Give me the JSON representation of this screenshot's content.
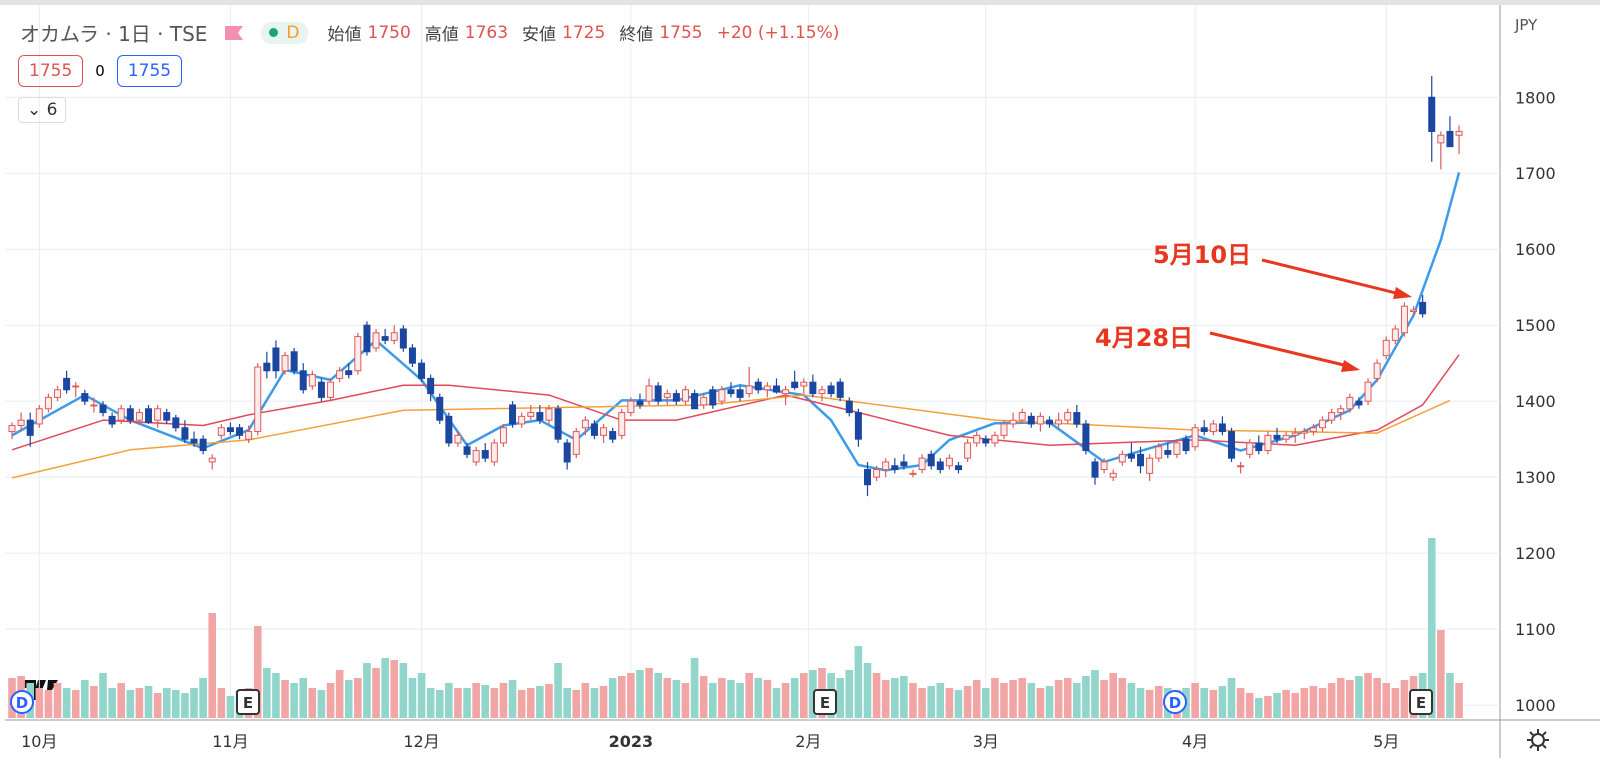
{
  "header": {
    "name": "オカムラ · 1日 · TSE",
    "badge": "D",
    "open_label": "始値",
    "open": 1750,
    "high_label": "高値",
    "high": 1763,
    "low_label": "安値",
    "low": 1725,
    "close_label": "終値",
    "close": 1755,
    "change": "+20 (+1.15%)",
    "price_left": 1755,
    "spread": 0,
    "price_right": 1755,
    "indicators": 6
  },
  "chart_data": {
    "type": "candlestick",
    "currency": "JPY",
    "ylim": [
      983,
      1928
    ],
    "yticks": [
      1000,
      1100,
      1200,
      1300,
      1400,
      1500,
      1600,
      1700,
      1800
    ],
    "xlim": [
      -0.77,
      163.5
    ],
    "xticks": [
      {
        "value": 3,
        "label": "10月"
      },
      {
        "value": 24,
        "label": "11月"
      },
      {
        "value": 45,
        "label": "12月"
      },
      {
        "value": 68,
        "label": "2023"
      },
      {
        "value": 87.5,
        "label": "2月"
      },
      {
        "value": 107,
        "label": "3月"
      },
      {
        "value": 130,
        "label": "4月"
      },
      {
        "value": 151,
        "label": "5月"
      }
    ],
    "up_color": "#e05a5a",
    "down_color": "#1b47a0",
    "up_volume_color": "#f2a5a5",
    "down_volume_color": "#92d5cb",
    "grid": true,
    "volume_lim": [
      0,
      220
    ],
    "candles": [
      [
        1360,
        1372,
        1350,
        1368
      ],
      [
        1368,
        1385,
        1360,
        1375
      ],
      [
        1375,
        1385,
        1340,
        1355
      ],
      [
        1370,
        1395,
        1365,
        1390
      ],
      [
        1390,
        1410,
        1385,
        1405
      ],
      [
        1405,
        1420,
        1400,
        1415
      ],
      [
        1430,
        1440,
        1410,
        1415
      ],
      [
        1420,
        1425,
        1405,
        1420
      ],
      [
        1410,
        1415,
        1395,
        1400
      ],
      [
        1395,
        1405,
        1385,
        1395
      ],
      [
        1395,
        1400,
        1380,
        1385
      ],
      [
        1380,
        1385,
        1365,
        1370
      ],
      [
        1375,
        1395,
        1370,
        1390
      ],
      [
        1390,
        1395,
        1370,
        1375
      ],
      [
        1375,
        1390,
        1370,
        1385
      ],
      [
        1390,
        1395,
        1370,
        1372
      ],
      [
        1375,
        1395,
        1365,
        1390
      ],
      [
        1385,
        1390,
        1370,
        1375
      ],
      [
        1378,
        1382,
        1360,
        1365
      ],
      [
        1365,
        1375,
        1345,
        1350
      ],
      [
        1350,
        1360,
        1340,
        1345
      ],
      [
        1350,
        1355,
        1330,
        1335
      ],
      [
        1320,
        1330,
        1310,
        1325
      ],
      [
        1355,
        1370,
        1350,
        1365
      ],
      [
        1365,
        1372,
        1355,
        1360
      ],
      [
        1365,
        1370,
        1350,
        1355
      ],
      [
        1350,
        1368,
        1345,
        1360
      ],
      [
        1360,
        1450,
        1355,
        1445
      ],
      [
        1450,
        1465,
        1430,
        1440
      ],
      [
        1470,
        1480,
        1430,
        1440
      ],
      [
        1440,
        1465,
        1435,
        1460
      ],
      [
        1465,
        1470,
        1435,
        1440
      ],
      [
        1440,
        1450,
        1410,
        1415
      ],
      [
        1420,
        1440,
        1415,
        1435
      ],
      [
        1425,
        1430,
        1400,
        1405
      ],
      [
        1405,
        1430,
        1400,
        1425
      ],
      [
        1430,
        1445,
        1425,
        1440
      ],
      [
        1440,
        1450,
        1430,
        1435
      ],
      [
        1440,
        1490,
        1435,
        1485
      ],
      [
        1500,
        1505,
        1460,
        1465
      ],
      [
        1470,
        1495,
        1465,
        1490
      ],
      [
        1485,
        1495,
        1475,
        1480
      ],
      [
        1480,
        1500,
        1475,
        1490
      ],
      [
        1495,
        1500,
        1465,
        1470
      ],
      [
        1470,
        1475,
        1445,
        1450
      ],
      [
        1450,
        1455,
        1425,
        1430
      ],
      [
        1430,
        1435,
        1400,
        1410
      ],
      [
        1405,
        1410,
        1370,
        1375
      ],
      [
        1380,
        1385,
        1340,
        1345
      ],
      [
        1345,
        1360,
        1340,
        1355
      ],
      [
        1340,
        1345,
        1325,
        1330
      ],
      [
        1320,
        1340,
        1315,
        1335
      ],
      [
        1335,
        1345,
        1320,
        1325
      ],
      [
        1320,
        1350,
        1315,
        1345
      ],
      [
        1345,
        1370,
        1340,
        1365
      ],
      [
        1395,
        1400,
        1365,
        1370
      ],
      [
        1370,
        1385,
        1365,
        1380
      ],
      [
        1380,
        1395,
        1375,
        1385
      ],
      [
        1385,
        1395,
        1370,
        1375
      ],
      [
        1375,
        1395,
        1370,
        1390
      ],
      [
        1390,
        1395,
        1345,
        1350
      ],
      [
        1345,
        1350,
        1310,
        1320
      ],
      [
        1330,
        1365,
        1325,
        1360
      ],
      [
        1365,
        1380,
        1355,
        1375
      ],
      [
        1370,
        1375,
        1350,
        1355
      ],
      [
        1355,
        1370,
        1345,
        1365
      ],
      [
        1360,
        1365,
        1345,
        1350
      ],
      [
        1355,
        1390,
        1350,
        1385
      ],
      [
        1385,
        1405,
        1380,
        1400
      ],
      [
        1400,
        1410,
        1390,
        1395
      ],
      [
        1400,
        1430,
        1395,
        1420
      ],
      [
        1420,
        1425,
        1395,
        1400
      ],
      [
        1405,
        1415,
        1395,
        1410
      ],
      [
        1410,
        1415,
        1395,
        1400
      ],
      [
        1400,
        1420,
        1395,
        1415
      ],
      [
        1410,
        1415,
        1390,
        1390
      ],
      [
        1395,
        1410,
        1390,
        1405
      ],
      [
        1415,
        1420,
        1390,
        1395
      ],
      [
        1400,
        1420,
        1395,
        1415
      ],
      [
        1415,
        1425,
        1405,
        1410
      ],
      [
        1415,
        1420,
        1400,
        1405
      ],
      [
        1410,
        1445,
        1405,
        1420
      ],
      [
        1425,
        1430,
        1410,
        1415
      ],
      [
        1415,
        1425,
        1405,
        1420
      ],
      [
        1420,
        1430,
        1410,
        1412
      ],
      [
        1410,
        1420,
        1395,
        1415
      ],
      [
        1425,
        1440,
        1415,
        1418
      ],
      [
        1420,
        1430,
        1410,
        1425
      ],
      [
        1425,
        1435,
        1405,
        1410
      ],
      [
        1410,
        1420,
        1400,
        1415
      ],
      [
        1420,
        1425,
        1405,
        1410
      ],
      [
        1425,
        1430,
        1400,
        1405
      ],
      [
        1400,
        1405,
        1380,
        1385
      ],
      [
        1385,
        1390,
        1340,
        1350
      ],
      [
        1310,
        1320,
        1275,
        1290
      ],
      [
        1300,
        1315,
        1295,
        1310
      ],
      [
        1310,
        1325,
        1300,
        1320
      ],
      [
        1315,
        1325,
        1305,
        1310
      ],
      [
        1320,
        1330,
        1310,
        1315
      ],
      [
        1305,
        1310,
        1300,
        1305
      ],
      [
        1310,
        1330,
        1305,
        1325
      ],
      [
        1330,
        1335,
        1310,
        1315
      ],
      [
        1320,
        1325,
        1305,
        1310
      ],
      [
        1315,
        1330,
        1310,
        1325
      ],
      [
        1315,
        1320,
        1305,
        1310
      ],
      [
        1325,
        1350,
        1320,
        1345
      ],
      [
        1345,
        1360,
        1340,
        1355
      ],
      [
        1350,
        1355,
        1340,
        1345
      ],
      [
        1345,
        1360,
        1340,
        1355
      ],
      [
        1355,
        1375,
        1350,
        1370
      ],
      [
        1370,
        1385,
        1365,
        1375
      ],
      [
        1375,
        1390,
        1370,
        1385
      ],
      [
        1380,
        1385,
        1365,
        1370
      ],
      [
        1370,
        1385,
        1360,
        1380
      ],
      [
        1375,
        1380,
        1365,
        1370
      ],
      [
        1370,
        1385,
        1365,
        1375
      ],
      [
        1375,
        1390,
        1370,
        1385
      ],
      [
        1385,
        1395,
        1365,
        1370
      ],
      [
        1370,
        1375,
        1330,
        1335
      ],
      [
        1320,
        1325,
        1290,
        1300
      ],
      [
        1310,
        1325,
        1305,
        1320
      ],
      [
        1300,
        1310,
        1295,
        1305
      ],
      [
        1320,
        1335,
        1315,
        1330
      ],
      [
        1330,
        1345,
        1320,
        1325
      ],
      [
        1330,
        1340,
        1305,
        1315
      ],
      [
        1305,
        1330,
        1295,
        1325
      ],
      [
        1325,
        1345,
        1320,
        1340
      ],
      [
        1335,
        1345,
        1325,
        1330
      ],
      [
        1330,
        1350,
        1325,
        1345
      ],
      [
        1350,
        1355,
        1330,
        1335
      ],
      [
        1340,
        1370,
        1335,
        1365
      ],
      [
        1365,
        1375,
        1355,
        1360
      ],
      [
        1360,
        1375,
        1355,
        1370
      ],
      [
        1370,
        1380,
        1355,
        1360
      ],
      [
        1360,
        1365,
        1320,
        1325
      ],
      [
        1315,
        1320,
        1305,
        1315
      ],
      [
        1330,
        1350,
        1325,
        1345
      ],
      [
        1345,
        1355,
        1330,
        1335
      ],
      [
        1335,
        1360,
        1330,
        1355
      ],
      [
        1355,
        1365,
        1345,
        1350
      ],
      [
        1350,
        1360,
        1345,
        1355
      ],
      [
        1355,
        1365,
        1345,
        1358
      ],
      [
        1358,
        1365,
        1350,
        1360
      ],
      [
        1360,
        1370,
        1355,
        1365
      ],
      [
        1365,
        1380,
        1360,
        1375
      ],
      [
        1375,
        1390,
        1370,
        1385
      ],
      [
        1385,
        1395,
        1375,
        1390
      ],
      [
        1390,
        1410,
        1385,
        1405
      ],
      [
        1400,
        1405,
        1390,
        1395
      ],
      [
        1400,
        1430,
        1395,
        1425
      ],
      [
        1430,
        1455,
        1425,
        1450
      ],
      [
        1460,
        1485,
        1455,
        1480
      ],
      [
        1480,
        1500,
        1475,
        1495
      ],
      [
        1490,
        1530,
        1485,
        1525
      ],
      [
        1518,
        1525,
        1512,
        1520
      ],
      [
        1530,
        1540,
        1510,
        1515
      ],
      [
        1800,
        1828,
        1715,
        1755
      ],
      [
        1740,
        1755,
        1705,
        1750
      ],
      [
        1755,
        1775,
        1735,
        1735
      ],
      [
        1750,
        1763,
        1725,
        1755
      ]
    ],
    "volume": [
      40,
      42,
      35,
      30,
      28,
      35,
      30,
      28,
      38,
      32,
      45,
      30,
      35,
      28,
      30,
      32,
      25,
      30,
      28,
      25,
      30,
      40,
      105,
      30,
      22,
      28,
      30,
      92,
      50,
      45,
      38,
      35,
      40,
      30,
      28,
      35,
      48,
      38,
      40,
      55,
      50,
      60,
      58,
      55,
      40,
      45,
      30,
      28,
      35,
      30,
      30,
      35,
      33,
      30,
      35,
      38,
      28,
      30,
      32,
      34,
      55,
      30,
      28,
      35,
      30,
      32,
      40,
      42,
      45,
      48,
      50,
      45,
      40,
      38,
      35,
      60,
      42,
      35,
      40,
      38,
      35,
      45,
      40,
      38,
      30,
      35,
      40,
      45,
      48,
      50,
      45,
      40,
      48,
      72,
      55,
      45,
      38,
      40,
      42,
      35,
      30,
      32,
      35,
      30,
      28,
      32,
      38,
      30,
      40,
      35,
      38,
      40,
      35,
      30,
      32,
      38,
      40,
      35,
      42,
      48,
      38,
      45,
      40,
      35,
      30,
      28,
      32,
      30,
      28,
      30,
      35,
      30,
      28,
      32,
      40,
      30,
      25,
      20,
      22,
      25,
      28,
      25,
      30,
      32,
      30,
      35,
      40,
      38,
      42,
      45,
      40,
      35,
      30,
      38,
      42,
      45,
      180,
      88,
      45,
      35
    ],
    "series": [
      {
        "color": "#3d9be9",
        "x": [
          0,
          8,
          13,
          21,
          26,
          30,
          35,
          40,
          45,
          50,
          54,
          58,
          62,
          67,
          73,
          80,
          87,
          90,
          93,
          96,
          100,
          103,
          108,
          114,
          120,
          125,
          130,
          135,
          141,
          147,
          150,
          154,
          157,
          159
        ],
        "values": [
          1355,
          1408,
          1375,
          1338,
          1362,
          1441,
          1428,
          1480,
          1428,
          1342,
          1368,
          1375,
          1349,
          1401,
          1401,
          1421,
          1408,
          1375,
          1316,
          1309,
          1316,
          1349,
          1371,
          1372,
          1320,
          1338,
          1355,
          1335,
          1355,
          1388,
          1428,
          1513,
          1612,
          1701
        ]
      },
      {
        "color": "#e04a5a",
        "x": [
          0,
          10,
          21,
          26,
          35,
          43,
          48,
          59,
          67,
          73,
          85,
          92,
          103,
          114,
          130,
          141,
          150,
          155,
          159
        ],
        "values": [
          1336,
          1375,
          1368,
          1382,
          1401,
          1421,
          1421,
          1408,
          1375,
          1375,
          1408,
          1388,
          1355,
          1342,
          1349,
          1342,
          1362,
          1395,
          1461
        ]
      },
      {
        "color": "#f3a03a",
        "x": [
          0,
          13,
          26,
          43,
          76,
          87,
          108,
          130,
          150,
          158
        ],
        "values": [
          1299,
          1336,
          1349,
          1388,
          1395,
          1408,
          1375,
          1362,
          1358,
          1401
        ]
      }
    ],
    "annotations": [
      {
        "text": "5月10日"
      },
      {
        "text": "4月28日"
      }
    ],
    "events": [
      {
        "label": "D"
      },
      {
        "label": "E"
      },
      {
        "label": "E"
      },
      {
        "label": "D"
      },
      {
        "label": "E"
      }
    ]
  }
}
